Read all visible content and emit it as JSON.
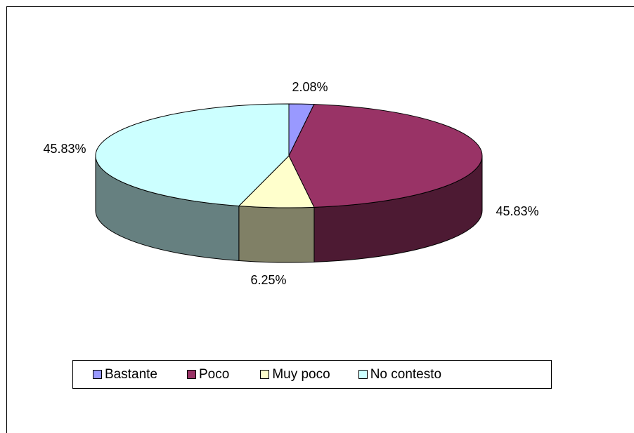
{
  "chart_data": {
    "type": "pie",
    "style": "3d-exploded-none",
    "title": "",
    "categories": [
      "Bastante",
      "Poco",
      "Muy poco",
      "No contesto"
    ],
    "values": [
      2.08,
      45.83,
      6.25,
      45.83
    ],
    "labels": [
      "2.08%",
      "45.83%",
      "6.25%",
      "45.83%"
    ],
    "colors": [
      "#9999ff",
      "#993366",
      "#ffffcc",
      "#ccffff"
    ],
    "side_colors": [
      "#5c5c99",
      "#4d1a33",
      "#808066",
      "#668080"
    ],
    "legend_position": "bottom"
  }
}
